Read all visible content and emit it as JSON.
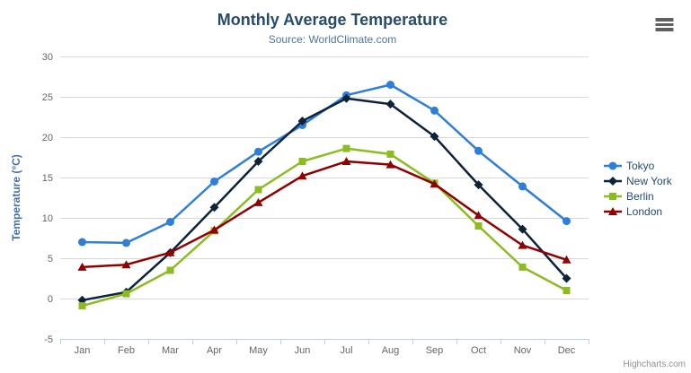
{
  "chart": {
    "credit": "Highcharts.com",
    "context_menu_icon": "hamburger-menu-icon"
  },
  "chart_data": {
    "type": "line",
    "title": "Monthly Average Temperature",
    "subtitle": "Source: WorldClimate.com",
    "xlabel": "",
    "ylabel": "Temperature (°C)",
    "ylim": [
      -5,
      30
    ],
    "yticks": [
      30,
      25,
      20,
      15,
      10,
      5,
      0,
      -5
    ],
    "grid": true,
    "legend_position": "right",
    "categories": [
      "Jan",
      "Feb",
      "Mar",
      "Apr",
      "May",
      "Jun",
      "Jul",
      "Aug",
      "Sep",
      "Oct",
      "Nov",
      "Dec"
    ],
    "series": [
      {
        "name": "Tokyo",
        "color": "#2f7ed8",
        "marker": "circle",
        "values": [
          7.0,
          6.9,
          9.5,
          14.5,
          18.2,
          21.5,
          25.2,
          26.5,
          23.3,
          18.3,
          13.9,
          9.6
        ]
      },
      {
        "name": "New York",
        "color": "#0d233a",
        "marker": "diamond",
        "values": [
          -0.2,
          0.8,
          5.7,
          11.3,
          17.0,
          22.0,
          24.8,
          24.1,
          20.1,
          14.1,
          8.6,
          2.5
        ]
      },
      {
        "name": "Berlin",
        "color": "#8bbc21",
        "marker": "square",
        "values": [
          -0.9,
          0.6,
          3.5,
          8.4,
          13.5,
          17.0,
          18.6,
          17.9,
          14.3,
          9.0,
          3.9,
          1.0
        ]
      },
      {
        "name": "London",
        "color": "#910000",
        "marker": "triangle",
        "values": [
          3.9,
          4.2,
          5.7,
          8.5,
          11.9,
          15.2,
          17.0,
          16.6,
          14.2,
          10.3,
          6.6,
          4.8
        ]
      }
    ],
    "colors": {
      "title": "#274b6d",
      "subtitle": "#4d759e",
      "axis_title": "#4572a7",
      "tick_label": "#666666",
      "gridline": "#d8d8d8",
      "axis_line": "#c0d0e0",
      "legend_text": "#274b6d",
      "credit_text": "#909090"
    }
  }
}
